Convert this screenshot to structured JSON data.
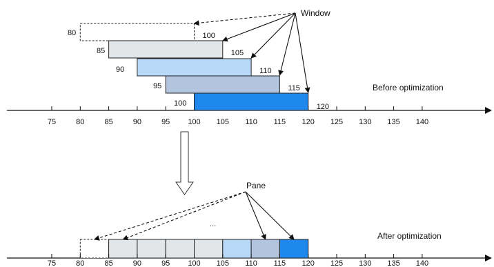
{
  "top": {
    "window_label": "Window",
    "caption": "Before optimization",
    "axis_ticks": [
      "75",
      "80",
      "85",
      "90",
      "95",
      "100",
      "105",
      "110",
      "115",
      "120",
      "125",
      "130",
      "135",
      "140"
    ],
    "windows": [
      {
        "start": "80",
        "end": "100",
        "start_value": 80,
        "end_value": 100,
        "fill": "#ffffff",
        "dashed": true
      },
      {
        "start": "85",
        "end": "105",
        "start_value": 85,
        "end_value": 105,
        "fill": "#e3e6e8",
        "dashed": false
      },
      {
        "start": "90",
        "end": "110",
        "start_value": 90,
        "end_value": 110,
        "fill": "#b8d8f8",
        "dashed": false
      },
      {
        "start": "95",
        "end": "115",
        "start_value": 95,
        "end_value": 115,
        "fill": "#b3c4de",
        "dashed": false
      },
      {
        "start": "100",
        "end": "120",
        "start_value": 100,
        "end_value": 120,
        "fill": "#1e88ee",
        "dashed": false
      }
    ]
  },
  "bottom": {
    "pane_label": "Pane",
    "ellipsis": "...",
    "caption": "After optimization",
    "axis_ticks": [
      "75",
      "80",
      "85",
      "90",
      "95",
      "100",
      "105",
      "110",
      "115",
      "120",
      "125",
      "130",
      "135",
      "140"
    ],
    "panes": [
      {
        "start_value": 80,
        "end_value": 85,
        "fill": "#ffffff",
        "dashed": true
      },
      {
        "start_value": 85,
        "end_value": 90,
        "fill": "#e3e6e8",
        "dashed": false
      },
      {
        "start_value": 90,
        "end_value": 95,
        "fill": "#e3e6e8",
        "dashed": false
      },
      {
        "start_value": 95,
        "end_value": 100,
        "fill": "#e3e6e8",
        "dashed": false
      },
      {
        "start_value": 100,
        "end_value": 105,
        "fill": "#e3e6e8",
        "dashed": false
      },
      {
        "start_value": 105,
        "end_value": 110,
        "fill": "#b8d8f8",
        "dashed": false
      },
      {
        "start_value": 110,
        "end_value": 115,
        "fill": "#b3c4de",
        "dashed": false
      },
      {
        "start_value": 115,
        "end_value": 120,
        "fill": "#1e88ee",
        "dashed": false
      }
    ]
  }
}
